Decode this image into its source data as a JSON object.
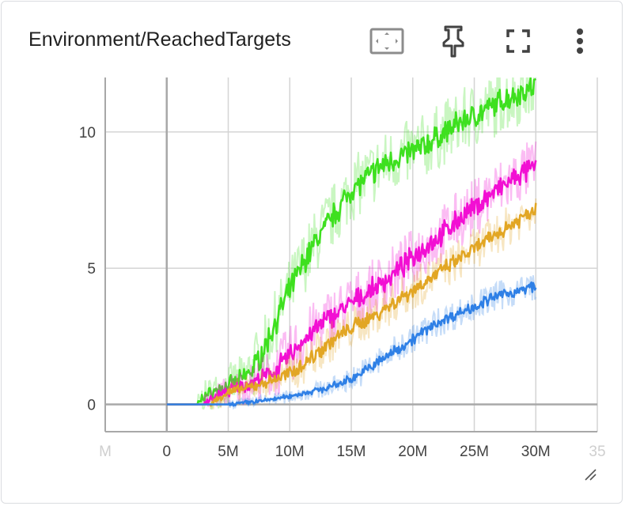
{
  "card": {
    "title": "Environment/ReachedTargets",
    "toolbar": [
      {
        "icon": "fit-domain-icon",
        "label": ""
      },
      {
        "icon": "pin-icon",
        "label": ""
      },
      {
        "icon": "fullscreen-icon",
        "label": ""
      },
      {
        "icon": "more-vert-icon",
        "label": ""
      }
    ]
  },
  "colors": {
    "green": "#3ee01f",
    "magenta": "#f20fd3",
    "orange": "#e2a624",
    "blue": "#2f80e6",
    "grid": "#d4d4d4",
    "axis": "#a8a8a8"
  },
  "chart_data": {
    "type": "line",
    "xlabel": "",
    "ylabel": "",
    "xlim": [
      -5000000,
      35000000
    ],
    "ylim": [
      -1,
      12
    ],
    "grid": true,
    "legend": "none",
    "x_ticks": [
      "M",
      "0",
      "5M",
      "10M",
      "15M",
      "20M",
      "25M",
      "30M",
      "35"
    ],
    "y_ticks": [
      "0",
      "5",
      "10"
    ],
    "series": [
      {
        "color": "green",
        "x": [
          0,
          2500000,
          3000000,
          5000000,
          6000000,
          7000000,
          8000000,
          9000000,
          10000000,
          11000000,
          12000000,
          13000000,
          14000000,
          15000000,
          16000000,
          17000000,
          18000000,
          19000000,
          20000000,
          21000000,
          22000000,
          23000000,
          24000000,
          25000000,
          26000000,
          27000000,
          28000000,
          29000000,
          30000000
        ],
        "y": [
          0,
          0,
          0.3,
          0.7,
          0.9,
          1.3,
          2.1,
          3.2,
          4.2,
          5.1,
          5.9,
          6.6,
          7.2,
          7.9,
          8.2,
          8.6,
          8.9,
          9.1,
          9.3,
          9.5,
          9.8,
          10.1,
          10.4,
          10.6,
          10.8,
          11.1,
          11.3,
          11.5,
          11.7
        ]
      },
      {
        "color": "magenta",
        "x": [
          0,
          3000000,
          4000000,
          5000000,
          6000000,
          7000000,
          8000000,
          9000000,
          10000000,
          11000000,
          12000000,
          13000000,
          14000000,
          15000000,
          16000000,
          17000000,
          18000000,
          19000000,
          20000000,
          21000000,
          22000000,
          23000000,
          24000000,
          25000000,
          26000000,
          27000000,
          28000000,
          29000000,
          30000000
        ],
        "y": [
          0,
          0,
          0.3,
          0.5,
          0.65,
          0.8,
          1.0,
          1.3,
          1.8,
          2.3,
          2.7,
          3.1,
          3.4,
          3.7,
          4.0,
          4.3,
          4.6,
          5.0,
          5.4,
          5.8,
          6.1,
          6.5,
          6.9,
          7.2,
          7.6,
          7.9,
          8.2,
          8.5,
          8.7
        ]
      },
      {
        "color": "orange",
        "x": [
          0,
          3500000,
          4500000,
          5000000,
          6000000,
          7000000,
          8000000,
          9000000,
          10000000,
          11000000,
          12000000,
          13000000,
          14000000,
          15000000,
          16000000,
          17000000,
          18000000,
          19000000,
          20000000,
          21000000,
          22000000,
          23000000,
          24000000,
          25000000,
          26000000,
          27000000,
          28000000,
          29000000,
          30000000
        ],
        "y": [
          0,
          0,
          0.3,
          0.45,
          0.55,
          0.65,
          0.8,
          0.95,
          1.15,
          1.45,
          1.8,
          2.2,
          2.5,
          2.8,
          3.05,
          3.3,
          3.6,
          3.9,
          4.2,
          4.5,
          4.8,
          5.1,
          5.4,
          5.7,
          6.0,
          6.3,
          6.6,
          6.9,
          7.2
        ]
      },
      {
        "color": "blue",
        "x": [
          0,
          5000000,
          6000000,
          7000000,
          8000000,
          9000000,
          10000000,
          11000000,
          12000000,
          13000000,
          14000000,
          15000000,
          16000000,
          17000000,
          18000000,
          19000000,
          20000000,
          21000000,
          22000000,
          23000000,
          24000000,
          25000000,
          26000000,
          27000000,
          28000000,
          29000000,
          30000000
        ],
        "y": [
          0,
          0,
          0.05,
          0.1,
          0.15,
          0.22,
          0.3,
          0.4,
          0.5,
          0.6,
          0.75,
          0.95,
          1.2,
          1.5,
          1.8,
          2.1,
          2.4,
          2.7,
          3.0,
          3.2,
          3.4,
          3.6,
          3.8,
          4.0,
          4.1,
          4.2,
          4.4
        ]
      }
    ]
  }
}
